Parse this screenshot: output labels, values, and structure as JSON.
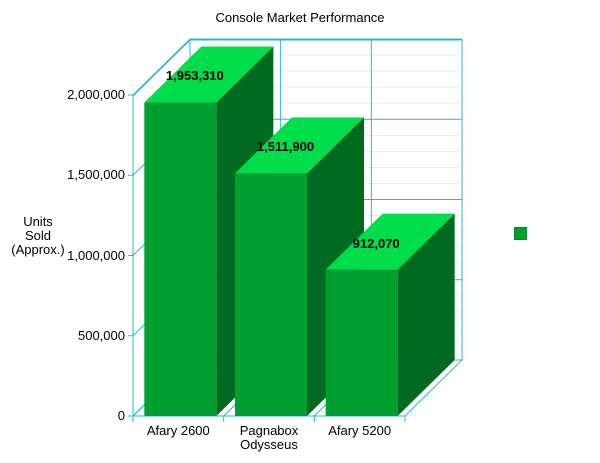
{
  "chart_data": {
    "type": "bar",
    "title": "Console Market Performance",
    "ylabel": "Units\nSold\n(Approx.)",
    "xlabel": "",
    "categories": [
      "Afary 2600",
      "Pagnabox\nOdysseus",
      "Afary 5200"
    ],
    "values": [
      1953310,
      1511900,
      912070
    ],
    "data_labels": [
      "1,953,310",
      "1,511,900",
      "912,070"
    ],
    "ylim": [
      0,
      2000000
    ],
    "yticks": [
      0,
      500000,
      1000000,
      1500000,
      2000000
    ],
    "ytick_labels": [
      "0",
      "500,000",
      "1,000,000",
      "1,500,000",
      "2,000,000"
    ],
    "grid": true,
    "three_d": true,
    "legend": {
      "placement": "right",
      "entries": [
        ""
      ]
    },
    "colors": {
      "bar_front": "#00a030",
      "bar_top": "#00dd4a",
      "bar_side": "#006b20",
      "grid": "#22b8d4",
      "axis": "#22b8d4"
    }
  }
}
